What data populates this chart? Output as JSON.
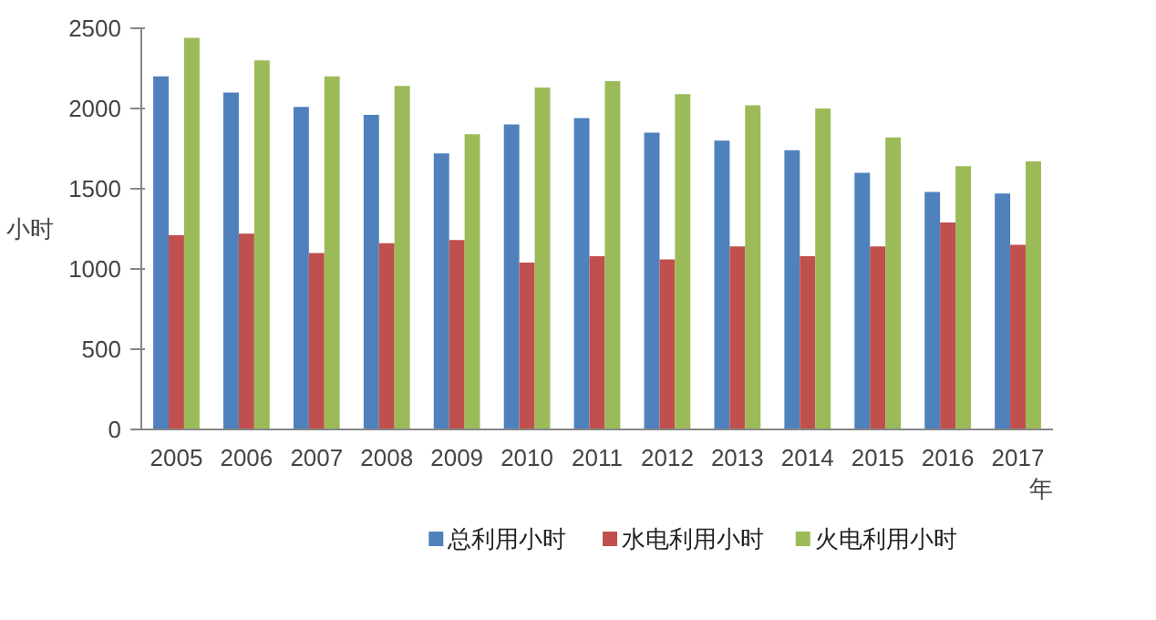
{
  "chart_data": {
    "type": "bar",
    "xlabel": "年",
    "ylabel": "小时",
    "categories": [
      "2005",
      "2006",
      "2007",
      "2008",
      "2009",
      "2010",
      "2011",
      "2012",
      "2013",
      "2014",
      "2015",
      "2016",
      "2017"
    ],
    "series": [
      {
        "name": "总利用小时",
        "color": "#4f81bd",
        "values": [
          2200,
          2100,
          2010,
          1960,
          1720,
          1900,
          1940,
          1850,
          1800,
          1740,
          1600,
          1480,
          1470
        ]
      },
      {
        "name": "水电利用小时",
        "color": "#c0504d",
        "values": [
          1210,
          1220,
          1100,
          1160,
          1180,
          1040,
          1080,
          1060,
          1140,
          1080,
          1140,
          1290,
          1150
        ]
      },
      {
        "name": "火电利用小时",
        "color": "#9bbb59",
        "values": [
          2440,
          2300,
          2200,
          2140,
          1840,
          2130,
          2170,
          2090,
          2020,
          2000,
          1820,
          1640,
          1670
        ]
      }
    ],
    "ylim": [
      0,
      2500
    ],
    "yticks": [
      0,
      500,
      1000,
      1500,
      2000,
      2500
    ],
    "grid": false,
    "legend": "bottom"
  }
}
